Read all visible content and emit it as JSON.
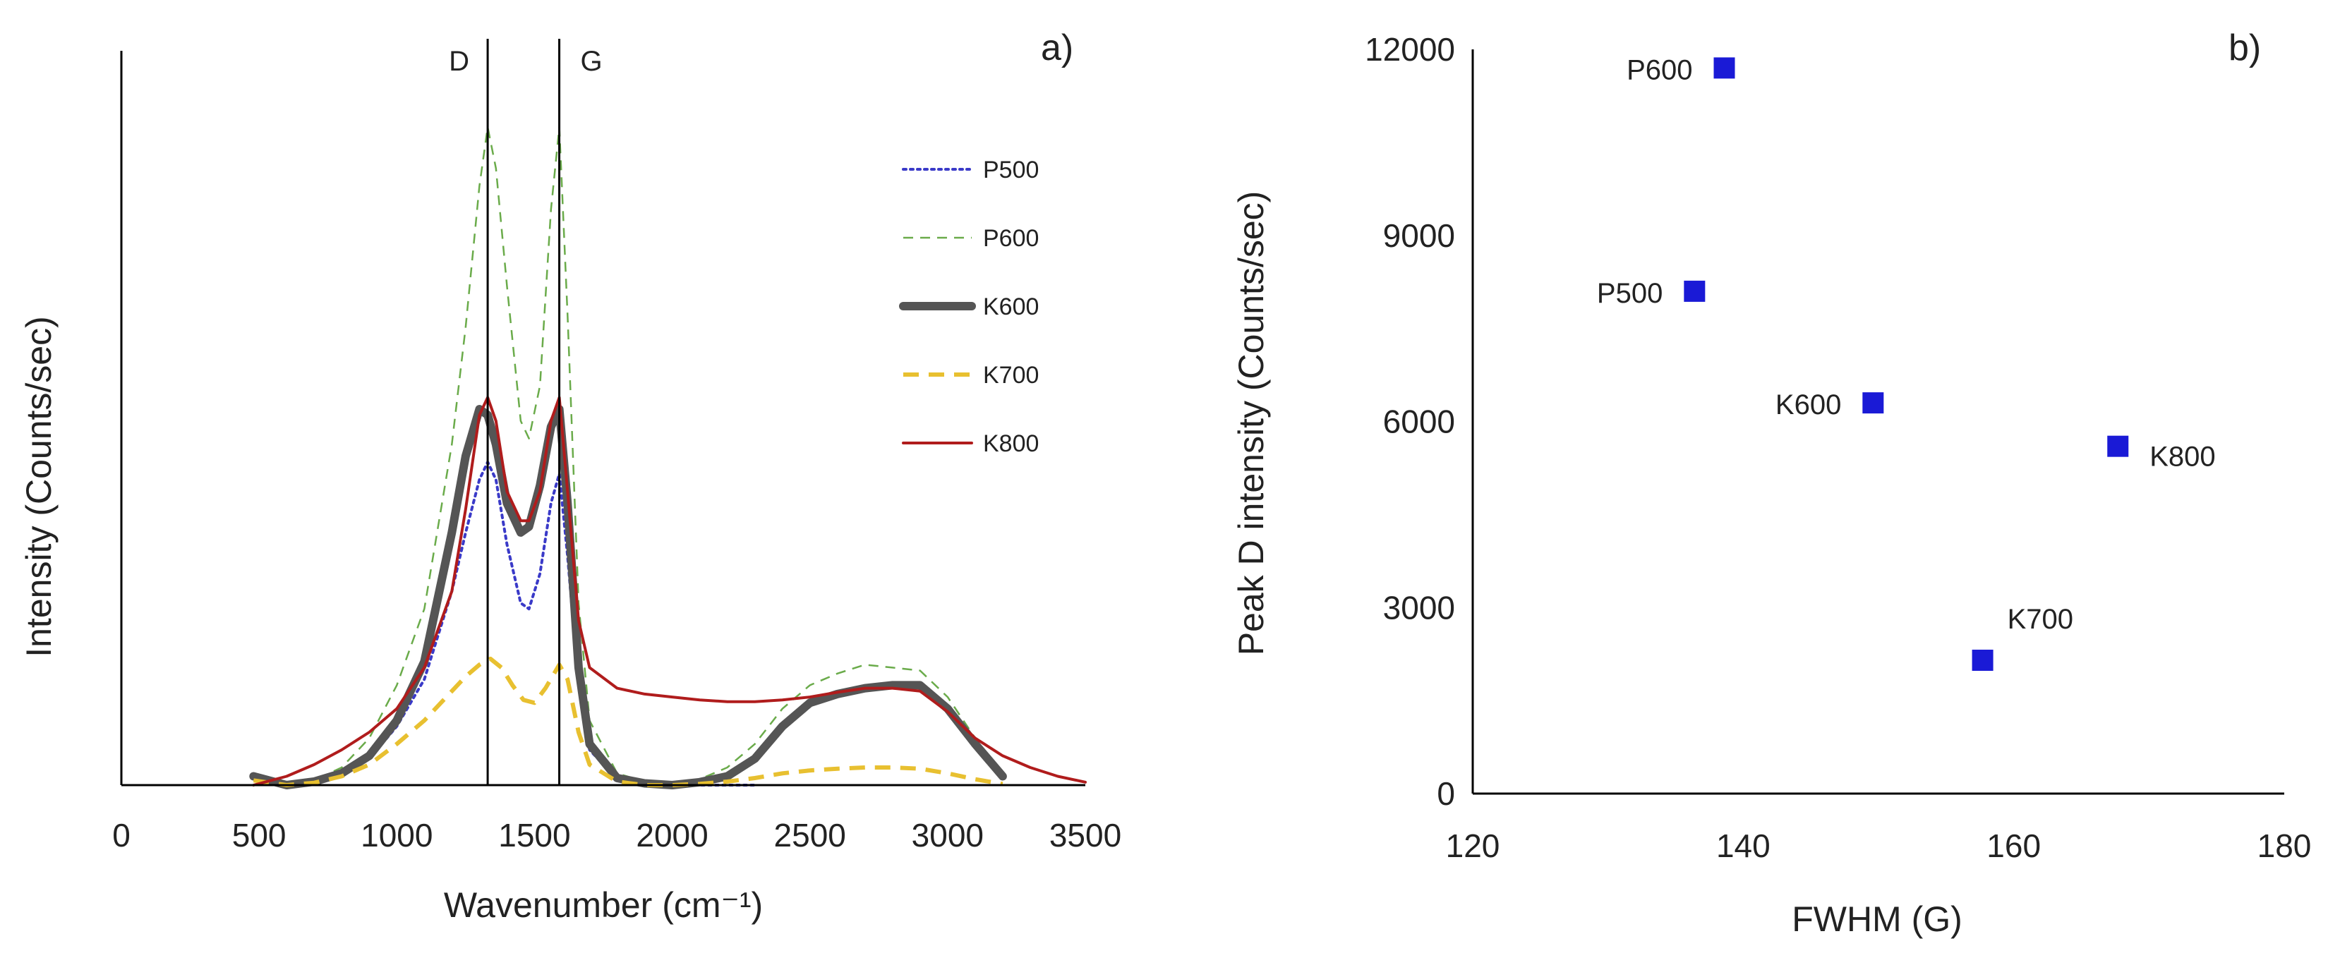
{
  "chart_data": [
    {
      "panel": "a)",
      "type": "line",
      "xlabel": "Wavenumber  (cm⁻¹)",
      "ylabel": "Intensity  (Counts/sec)",
      "xlim": [
        0,
        3500
      ],
      "ylim": [
        0,
        12500
      ],
      "xticks": [
        "0",
        "500",
        "1000",
        "1500",
        "2000",
        "2500",
        "3000",
        "3500"
      ],
      "xtick_values": [
        0,
        500,
        1000,
        1500,
        2000,
        2500,
        3000,
        3500
      ],
      "peak_markers": [
        {
          "label": "D",
          "x": 1330
        },
        {
          "label": "G",
          "x": 1590
        }
      ],
      "legend_position": "top-right",
      "series": [
        {
          "name": "P500",
          "color": "#3a3ac8",
          "style": "dotted",
          "x": [
            480,
            600,
            700,
            800,
            900,
            1000,
            1100,
            1200,
            1250,
            1300,
            1330,
            1360,
            1400,
            1450,
            1480,
            1520,
            1560,
            1590,
            1620,
            1660,
            1700,
            1800,
            1900,
            2000,
            2100,
            2200,
            2300
          ],
          "y": [
            150,
            0,
            60,
            200,
            450,
            1000,
            1800,
            3300,
            4300,
            5200,
            5500,
            5200,
            4100,
            3100,
            3000,
            3600,
            4800,
            5300,
            3900,
            1700,
            600,
            100,
            20,
            0,
            0,
            0,
            0
          ]
        },
        {
          "name": "P600",
          "color": "#6aab4a",
          "style": "dashed",
          "x": [
            480,
            600,
            700,
            800,
            900,
            1000,
            1100,
            1200,
            1250,
            1300,
            1330,
            1360,
            1400,
            1450,
            1480,
            1520,
            1560,
            1590,
            1620,
            1660,
            1700,
            1800,
            1900,
            2000,
            2100,
            2200,
            2300,
            2400,
            2500,
            2600,
            2700,
            2800,
            2900,
            3000,
            3100,
            3200
          ],
          "y": [
            200,
            0,
            80,
            300,
            800,
            1700,
            3000,
            5800,
            7800,
            10200,
            11200,
            10500,
            8500,
            6200,
            5900,
            6800,
            9800,
            11200,
            8000,
            3100,
            1100,
            200,
            60,
            30,
            100,
            300,
            700,
            1300,
            1700,
            1900,
            2050,
            2000,
            1950,
            1500,
            800,
            200
          ]
        },
        {
          "name": "K600",
          "color": "#555555",
          "style": "solid-thick",
          "x": [
            480,
            600,
            700,
            800,
            900,
            1000,
            1100,
            1200,
            1250,
            1300,
            1330,
            1360,
            1400,
            1450,
            1480,
            1520,
            1560,
            1590,
            1620,
            1660,
            1700,
            1800,
            1900,
            2000,
            2100,
            2200,
            2300,
            2400,
            2500,
            2600,
            2700,
            2800,
            2900,
            3000,
            3100,
            3200
          ],
          "y": [
            150,
            0,
            60,
            200,
            500,
            1100,
            2100,
            4300,
            5600,
            6400,
            6300,
            5800,
            4800,
            4300,
            4400,
            5100,
            6100,
            6400,
            4800,
            2000,
            700,
            120,
            30,
            0,
            50,
            150,
            450,
            1000,
            1400,
            1550,
            1650,
            1700,
            1700,
            1300,
            700,
            150
          ]
        },
        {
          "name": "K700",
          "color": "#e8c030",
          "style": "dashed-thick",
          "x": [
            480,
            600,
            700,
            800,
            900,
            1000,
            1100,
            1200,
            1250,
            1300,
            1340,
            1380,
            1420,
            1460,
            1500,
            1540,
            1590,
            1620,
            1660,
            1700,
            1800,
            1900,
            2000,
            2100,
            2200,
            2300,
            2400,
            2500,
            2600,
            2700,
            2800,
            2900,
            3000,
            3100,
            3200
          ],
          "y": [
            80,
            0,
            40,
            150,
            350,
            700,
            1100,
            1600,
            1850,
            2050,
            2150,
            2000,
            1700,
            1450,
            1400,
            1650,
            2050,
            1800,
            900,
            350,
            60,
            0,
            0,
            20,
            60,
            120,
            200,
            250,
            280,
            300,
            300,
            280,
            200,
            100,
            20
          ]
        },
        {
          "name": "K800",
          "color": "#b01c1c",
          "style": "solid",
          "x": [
            480,
            600,
            700,
            800,
            900,
            1000,
            1100,
            1200,
            1250,
            1300,
            1330,
            1360,
            1400,
            1450,
            1480,
            1520,
            1560,
            1590,
            1620,
            1660,
            1700,
            1800,
            1900,
            2000,
            2100,
            2200,
            2300,
            2400,
            2500,
            2600,
            2700,
            2800,
            2900,
            3000,
            3100,
            3200,
            3300,
            3400,
            3500
          ],
          "y": [
            0,
            150,
            350,
            600,
            900,
            1300,
            2000,
            3300,
            4700,
            6300,
            6600,
            6200,
            5000,
            4500,
            4500,
            5000,
            6200,
            6600,
            5000,
            2800,
            2000,
            1650,
            1550,
            1500,
            1450,
            1420,
            1420,
            1450,
            1500,
            1580,
            1650,
            1650,
            1600,
            1250,
            800,
            500,
            300,
            150,
            50
          ]
        }
      ]
    },
    {
      "panel": "b)",
      "type": "scatter",
      "xlabel": "FWHM (G)",
      "ylabel": "Peak D intensity  (Counts/sec)",
      "xlim": [
        120,
        180
      ],
      "ylim": [
        0,
        12000
      ],
      "xticks": [
        "120",
        "140",
        "160",
        "180"
      ],
      "xtick_values": [
        120,
        140,
        160,
        180
      ],
      "yticks": [
        "0",
        "3000",
        "6000",
        "9000",
        "12000"
      ],
      "ytick_values": [
        0,
        3000,
        6000,
        9000,
        12000
      ],
      "marker_color": "#1a1ad6",
      "points": [
        {
          "label": "P600",
          "x": 138.6,
          "y": 11700,
          "label_side": "left"
        },
        {
          "label": "P500",
          "x": 136.4,
          "y": 8100,
          "label_side": "left"
        },
        {
          "label": "K600",
          "x": 149.6,
          "y": 6300,
          "label_side": "left"
        },
        {
          "label": "K800",
          "x": 167.7,
          "y": 5600,
          "label_side": "right"
        },
        {
          "label": "K700",
          "x": 157.7,
          "y": 2150,
          "label_side": "above-right"
        }
      ]
    }
  ]
}
